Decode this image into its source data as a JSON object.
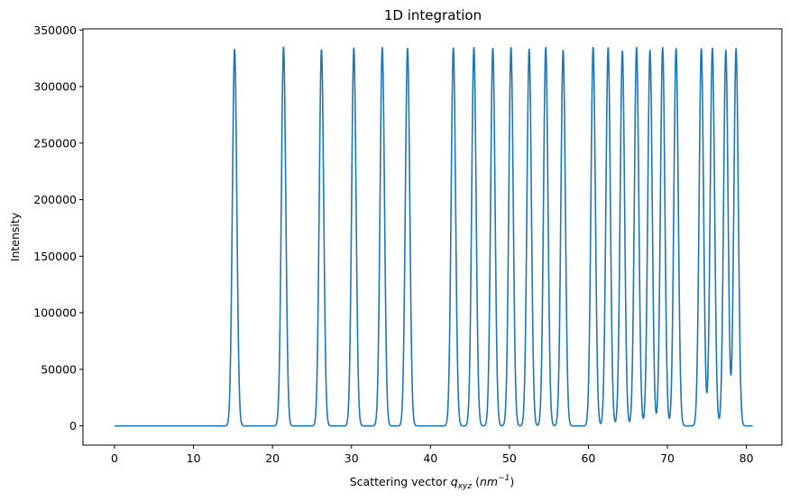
{
  "chart_data": {
    "type": "line",
    "title": "1D integration",
    "xlabel": "Scattering vector q_xyz (nm^-1)",
    "xlabel_parts": {
      "pre": "Scattering vector ",
      "q": "q",
      "sub": "xyz",
      "unit_open": " (",
      "unit": "nm",
      "exp": "−1",
      "unit_close": ")"
    },
    "ylabel": "Intensity",
    "xlim": [
      -4.0,
      84.5
    ],
    "ylim": [
      -17000,
      351000
    ],
    "xticks": [
      0,
      10,
      20,
      30,
      40,
      50,
      60,
      70,
      80
    ],
    "yticks": [
      0,
      50000,
      100000,
      150000,
      200000,
      250000,
      300000,
      350000
    ],
    "line_color": "#1f77b4",
    "x_range": [
      0,
      80.8
    ],
    "baseline": 0,
    "peak_sigma": 0.28,
    "grid": false,
    "legend": null,
    "series": [
      {
        "name": "intensity",
        "peaks": [
          {
            "x": 15.2,
            "y": 333000
          },
          {
            "x": 21.4,
            "y": 335000
          },
          {
            "x": 26.2,
            "y": 332500
          },
          {
            "x": 30.3,
            "y": 334000
          },
          {
            "x": 33.9,
            "y": 334500
          },
          {
            "x": 37.1,
            "y": 334000
          },
          {
            "x": 42.9,
            "y": 334000
          },
          {
            "x": 45.5,
            "y": 334500
          },
          {
            "x": 47.9,
            "y": 334000
          },
          {
            "x": 50.2,
            "y": 334500
          },
          {
            "x": 52.5,
            "y": 333000
          },
          {
            "x": 54.6,
            "y": 334500
          },
          {
            "x": 56.8,
            "y": 332000
          },
          {
            "x": 60.6,
            "y": 334500
          },
          {
            "x": 62.5,
            "y": 334500
          },
          {
            "x": 64.3,
            "y": 331500
          },
          {
            "x": 66.1,
            "y": 334500
          },
          {
            "x": 67.8,
            "y": 332000
          },
          {
            "x": 69.4,
            "y": 334500
          },
          {
            "x": 71.1,
            "y": 333500
          },
          {
            "x": 74.3,
            "y": 333500
          },
          {
            "x": 75.7,
            "y": 334000
          },
          {
            "x": 77.4,
            "y": 332000
          },
          {
            "x": 78.7,
            "y": 333500
          }
        ]
      }
    ]
  }
}
